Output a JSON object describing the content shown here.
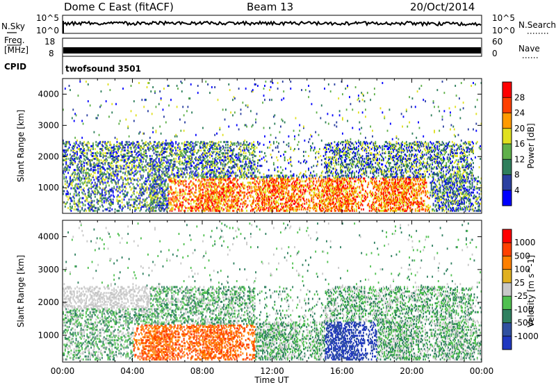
{
  "header": {
    "station": "Dome C East (fitACF)",
    "beam": "Beam 13",
    "date": "20/Oct/2014"
  },
  "top_panels": {
    "nsky_label": "N.Sky",
    "nsearch_label": "N.Search",
    "nsky_ticks": [
      "10^5",
      "10^0"
    ],
    "nsearch_ticks": [
      "10^5",
      "10^0"
    ],
    "freq_label": "Freq.",
    "freq_unit": "[MHz]",
    "freq_ticks": [
      "18",
      "8"
    ],
    "nave_label": "Nave",
    "nave_ticks": [
      "60",
      "0"
    ],
    "cpid_label": "CPID",
    "cpid_value": "twofsound 3501"
  },
  "chart_data": [
    {
      "type": "heatmap",
      "name": "power",
      "ylabel": "Slant Range [km]",
      "yticks": [
        1000,
        2000,
        3000,
        4000
      ],
      "ylim": [
        180,
        4500
      ],
      "xlim": [
        0,
        24
      ],
      "colorbar_label": "Power [dB]",
      "colorbar_ticks": [
        "4",
        "8",
        "12",
        "16",
        "20",
        "24",
        "28"
      ],
      "colorbar_colors": [
        "#0000ff",
        "#2a3fa0",
        "#2f7f5c",
        "#5fb04a",
        "#e0e020",
        "#ff9a00",
        "#ff4000",
        "#ff0000"
      ]
    },
    {
      "type": "heatmap",
      "name": "velocity",
      "ylabel": "Slant Range [km]",
      "yticks": [
        1000,
        2000,
        3000,
        4000
      ],
      "ylim": [
        180,
        4500
      ],
      "xlim": [
        0,
        24
      ],
      "xlabel": "Time UT",
      "xticks": [
        "00:00",
        "04:00",
        "08:00",
        "12:00",
        "16:00",
        "20:00",
        "00:00"
      ],
      "colorbar_label": "Velocity [m s^-1]",
      "colorbar_ticks": [
        "1000",
        "500",
        "100",
        "25",
        "-25",
        "-100",
        "-500",
        "-1000"
      ],
      "colorbar_colors": [
        "#2038c0",
        "#3050a0",
        "#2f8060",
        "#50c050",
        "#c8c8c8",
        "#e0b020",
        "#ff8000",
        "#ff4000",
        "#ff0000"
      ]
    }
  ]
}
